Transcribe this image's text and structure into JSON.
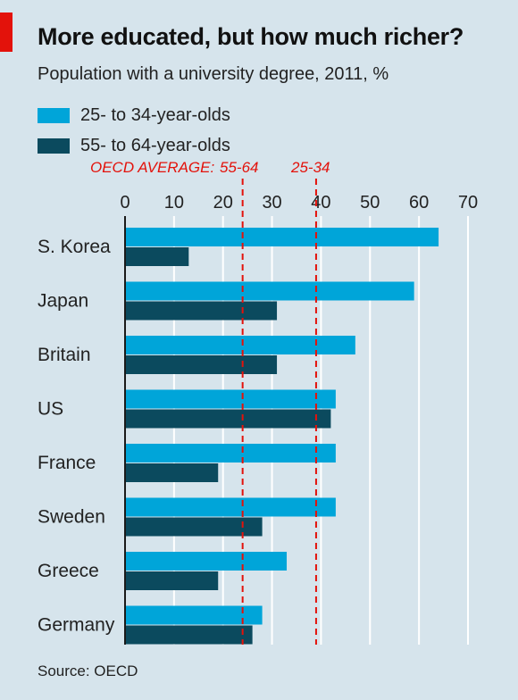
{
  "title": "More educated, but how much richer?",
  "subtitle": "Population with a university degree, 2011, %",
  "source": "Source: OECD",
  "colors": {
    "background": "#d6e4ec",
    "series_25_34": "#00a5d9",
    "series_55_64": "#0b4a5e",
    "accent_red": "#e3120b"
  },
  "legend": [
    {
      "label": "25- to 34-year-olds",
      "color": "#00a5d9"
    },
    {
      "label": "55- to 64-year-olds",
      "color": "#0b4a5e"
    }
  ],
  "reference_labels": {
    "title": "OECD AVERAGE:",
    "avg_55_64_label": "55-64",
    "avg_25_34_label": "25-34"
  },
  "chart_data": {
    "type": "bar",
    "orientation": "horizontal",
    "title": "More educated, but how much richer?",
    "subtitle": "Population with a university degree, 2011, %",
    "categories": [
      "S. Korea",
      "Japan",
      "Britain",
      "US",
      "France",
      "Sweden",
      "Greece",
      "Germany"
    ],
    "series": [
      {
        "name": "25- to 34-year-olds",
        "values": [
          64,
          59,
          47,
          43,
          43,
          43,
          33,
          28
        ]
      },
      {
        "name": "55- to 64-year-olds",
        "values": [
          13,
          31,
          31,
          42,
          19,
          28,
          19,
          26
        ]
      }
    ],
    "xlim": [
      0,
      70
    ],
    "xticks": [
      0,
      10,
      20,
      30,
      40,
      50,
      60,
      70
    ],
    "tick_position": "top",
    "grid": true,
    "legend_position": "top-left",
    "reference_lines": [
      {
        "label": "55-64",
        "value": 24
      },
      {
        "label": "25-34",
        "value": 39
      }
    ]
  }
}
